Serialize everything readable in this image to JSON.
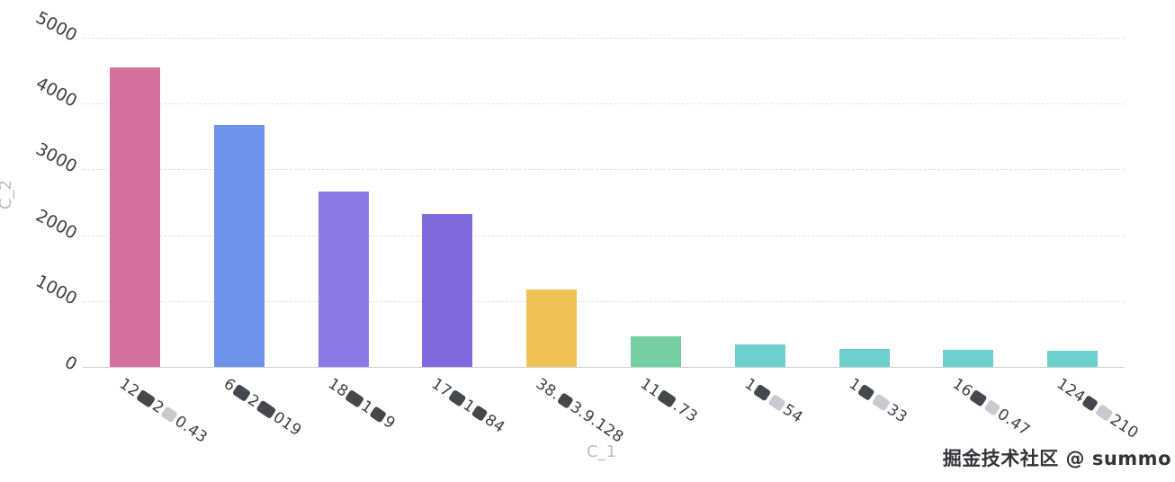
{
  "watermark": {
    "text": "掘金技术社区 @ summo"
  },
  "axis": {
    "tick_color": "#3e3e45",
    "title_color": "#b9bcc2",
    "gridline_color": "#e1e1e6",
    "axisline_color": "#cdced3",
    "redaction_dark_color": "#46464d",
    "redaction_light_color": "#c9c9cf"
  },
  "chart_data": {
    "type": "bar",
    "title": "",
    "xlabel": "C_1",
    "ylabel": "C_2",
    "ylim": [
      0,
      5000
    ],
    "yticks": [
      0,
      1000,
      2000,
      3000,
      4000,
      5000
    ],
    "grid": "horizontal dashed",
    "legend": "none",
    "tick_rotation_deg": 30,
    "categories": [
      "12█2░0.43",
      "6█2█019",
      "18█1█9",
      "17█1█84",
      "38.█3.9.128",
      "11█.73",
      "1█░54",
      "1█░33",
      "16█░0.47",
      "124█░210"
    ],
    "values": [
      4550,
      3670,
      2670,
      2320,
      1170,
      460,
      340,
      275,
      260,
      250
    ],
    "bar_colors": [
      "#d4719c",
      "#6e93ea",
      "#8b79e6",
      "#8069de",
      "#efc255",
      "#74cfa3",
      "#6ed0ce",
      "#6ed0ce",
      "#6ed0ce",
      "#6ed0ce"
    ],
    "label_segments": [
      [
        {
          "type": "text",
          "value": "12"
        },
        {
          "type": "redact-dark",
          "width": 18
        },
        {
          "type": "text",
          "value": "2"
        },
        {
          "type": "redact-light",
          "width": 15
        },
        {
          "type": "text",
          "value": "0.43"
        }
      ],
      [
        {
          "type": "text",
          "value": "6"
        },
        {
          "type": "redact-dark",
          "width": 17
        },
        {
          "type": "text",
          "value": "2"
        },
        {
          "type": "redact-dark",
          "width": 19
        },
        {
          "type": "text",
          "value": "019"
        }
      ],
      [
        {
          "type": "text",
          "value": "18"
        },
        {
          "type": "redact-dark",
          "width": 18
        },
        {
          "type": "text",
          "value": "1"
        },
        {
          "type": "redact-dark",
          "width": 15
        },
        {
          "type": "text",
          "value": "9"
        }
      ],
      [
        {
          "type": "text",
          "value": "17"
        },
        {
          "type": "redact-dark",
          "width": 16
        },
        {
          "type": "text",
          "value": "1"
        },
        {
          "type": "redact-dark",
          "width": 14
        },
        {
          "type": "text",
          "value": "84"
        }
      ],
      [
        {
          "type": "text",
          "value": "38."
        },
        {
          "type": "redact-dark",
          "width": 14
        },
        {
          "type": "text",
          "value": "3.9.128"
        }
      ],
      [
        {
          "type": "text",
          "value": "11"
        },
        {
          "type": "redact-dark",
          "width": 18
        },
        {
          "type": "text",
          "value": ".73"
        }
      ],
      [
        {
          "type": "text",
          "value": "1"
        },
        {
          "type": "redact-dark",
          "width": 16
        },
        {
          "type": "redact-light",
          "width": 16
        },
        {
          "type": "text",
          "value": "54"
        }
      ],
      [
        {
          "type": "text",
          "value": "1"
        },
        {
          "type": "redact-dark",
          "width": 15
        },
        {
          "type": "redact-light",
          "width": 17
        },
        {
          "type": "text",
          "value": "33"
        }
      ],
      [
        {
          "type": "text",
          "value": "16"
        },
        {
          "type": "redact-dark",
          "width": 16
        },
        {
          "type": "redact-light",
          "width": 14
        },
        {
          "type": "text",
          "value": "0.47"
        }
      ],
      [
        {
          "type": "text",
          "value": "124"
        },
        {
          "type": "redact-dark",
          "width": 14
        },
        {
          "type": "redact-light",
          "width": 16
        },
        {
          "type": "text",
          "value": "210"
        }
      ]
    ]
  }
}
